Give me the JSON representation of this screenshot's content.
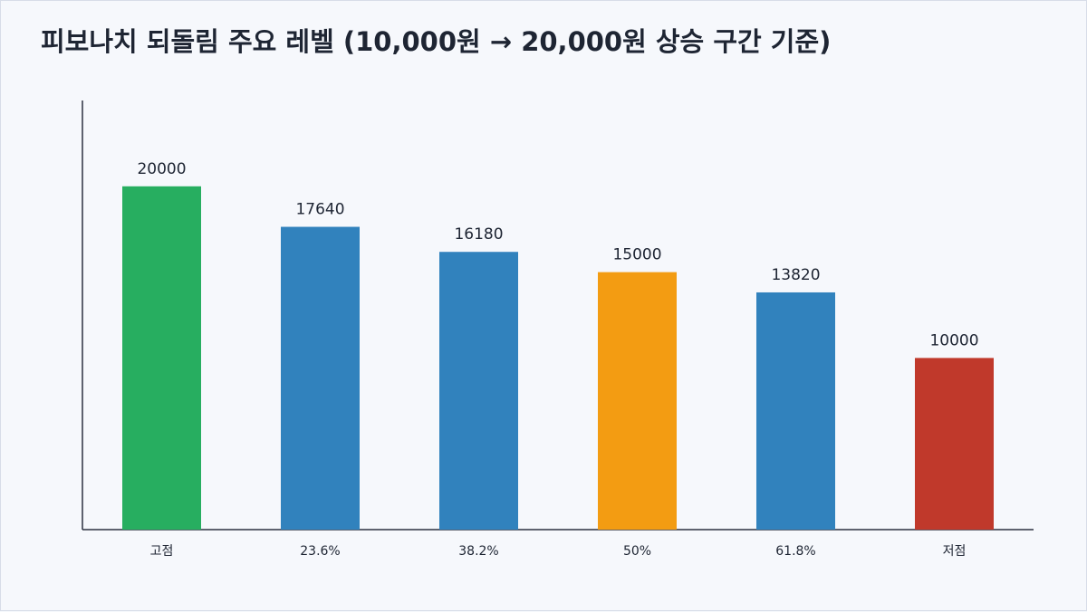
{
  "chart_data": {
    "type": "bar",
    "title": "피보나치 되돌림 주요 레벨 (10,000원 → 20,000원 상승 구간 기준)",
    "categories": [
      "고점",
      "23.6%",
      "38.2%",
      "50%",
      "61.8%",
      "저점"
    ],
    "values": [
      20000,
      17640,
      16180,
      15000,
      13820,
      10000
    ],
    "colors": [
      "#27ae60",
      "#3182bd",
      "#3182bd",
      "#f39c12",
      "#3182bd",
      "#c0392b"
    ],
    "ylim": [
      0,
      25000
    ],
    "grid": false,
    "legend": "none"
  }
}
